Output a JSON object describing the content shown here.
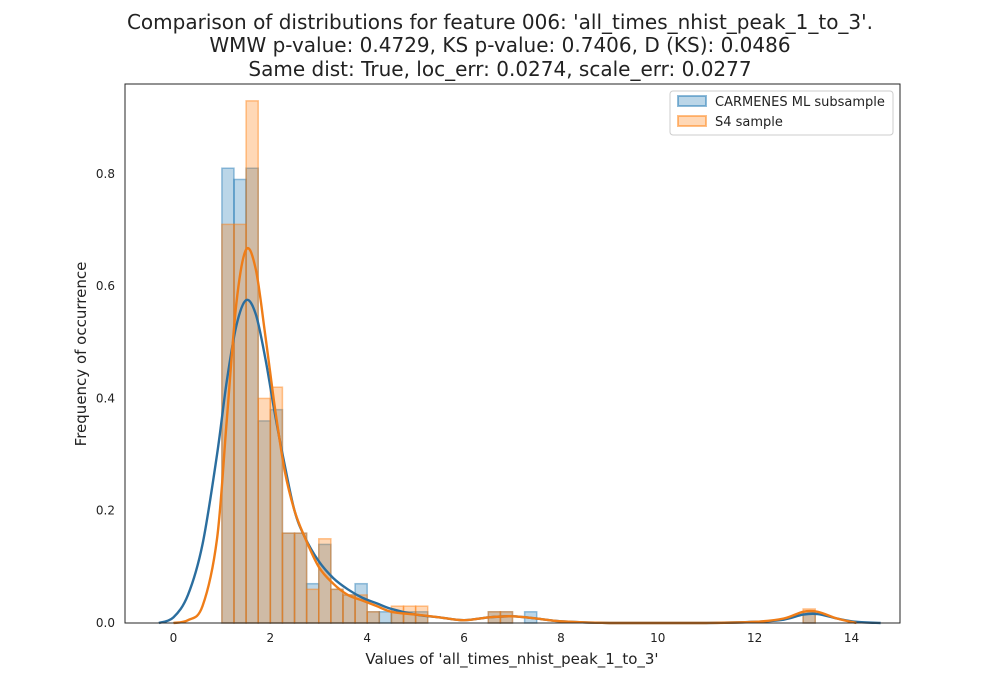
{
  "chart_data": {
    "type": "bar",
    "title_lines": [
      "Comparison of distributions for feature 006: 'all_times_nhist_peak_1_to_3'.",
      "WMW p-value: 0.4729, KS p-value: 0.7406, D (KS): 0.0486",
      "Same dist: True, loc_err: 0.0274, scale_err: 0.0277"
    ],
    "xlabel": "Values of 'all_times_nhist_peak_1_to_3'",
    "ylabel": "Frequency of occurrence",
    "xlim": [
      -1,
      15
    ],
    "ylim": [
      0,
      0.96
    ],
    "xticks": [
      0,
      2,
      4,
      6,
      8,
      10,
      12,
      14
    ],
    "yticks": [
      0.0,
      0.2,
      0.4,
      0.6,
      0.8
    ],
    "grid": false,
    "legend_position": "top-right",
    "series": [
      {
        "name": "CARMENES ML subsample",
        "color": "#1f77b4",
        "kde_color": "#2b6e9f",
        "bin_edges": [
          1.0,
          1.25,
          1.5,
          1.75,
          2.0,
          2.25,
          2.5,
          2.75,
          3.0,
          3.25,
          3.5,
          3.75,
          4.0,
          4.25,
          4.5,
          4.75,
          5.0,
          5.25,
          5.5,
          5.75,
          6.0,
          6.25,
          6.5,
          6.75,
          7.0,
          7.25,
          7.5
        ],
        "hist_values": [
          0.81,
          0.79,
          0.81,
          0.36,
          0.38,
          0.16,
          0.16,
          0.07,
          0.14,
          0.06,
          0.05,
          0.07,
          0.02,
          0.02,
          0.02,
          0.02,
          0.02,
          0.0,
          0.0,
          0.0,
          0.0,
          0.0,
          0.02,
          0.02,
          0.0,
          0.02
        ],
        "extra_bins": [
          {
            "x0": 13.0,
            "x1": 13.25,
            "value": 0.02
          }
        ],
        "kde": {
          "x": [
            -0.3,
            0.0,
            0.3,
            0.6,
            0.9,
            1.1,
            1.3,
            1.5,
            1.7,
            1.9,
            2.1,
            2.3,
            2.5,
            2.7,
            3.0,
            3.3,
            3.6,
            3.9,
            4.2,
            4.5,
            5.0,
            5.5,
            6.0,
            6.5,
            7.0,
            7.5,
            8.0,
            9.0,
            10.0,
            11.0,
            12.0,
            12.6,
            13.0,
            13.3,
            13.7,
            14.1,
            14.6
          ],
          "y": [
            0.0,
            0.01,
            0.05,
            0.14,
            0.3,
            0.43,
            0.53,
            0.575,
            0.55,
            0.47,
            0.37,
            0.28,
            0.2,
            0.155,
            0.11,
            0.08,
            0.06,
            0.045,
            0.035,
            0.025,
            0.015,
            0.01,
            0.005,
            0.01,
            0.012,
            0.008,
            0.003,
            0.0,
            0.0,
            0.0,
            0.002,
            0.006,
            0.015,
            0.016,
            0.008,
            0.002,
            0.0
          ]
        }
      },
      {
        "name": "S4 sample",
        "color": "#ff7f0e",
        "kde_color": "#ef7d18",
        "bin_edges": [
          1.0,
          1.25,
          1.5,
          1.75,
          2.0,
          2.25,
          2.5,
          2.75,
          3.0,
          3.25,
          3.5,
          3.75,
          4.0,
          4.25,
          4.5,
          4.75,
          5.0,
          5.25,
          5.5,
          5.75,
          6.0,
          6.25,
          6.5,
          6.75,
          7.0,
          7.25,
          7.5
        ],
        "hist_values": [
          0.71,
          0.71,
          0.93,
          0.4,
          0.42,
          0.16,
          0.16,
          0.06,
          0.15,
          0.06,
          0.05,
          0.05,
          0.02,
          0.0,
          0.03,
          0.03,
          0.03,
          0.0,
          0.0,
          0.0,
          0.0,
          0.0,
          0.02,
          0.02,
          0.0,
          0.0
        ],
        "extra_bins": [
          {
            "x0": 13.0,
            "x1": 13.25,
            "value": 0.025
          }
        ],
        "kde": {
          "x": [
            0.0,
            0.3,
            0.6,
            0.9,
            1.1,
            1.3,
            1.5,
            1.7,
            1.9,
            2.1,
            2.3,
            2.5,
            2.7,
            3.0,
            3.3,
            3.6,
            3.9,
            4.2,
            4.5,
            5.0,
            5.5,
            6.0,
            6.5,
            7.0,
            7.5,
            8.0,
            9.0,
            10.0,
            11.0,
            12.0,
            12.6,
            13.0,
            13.3,
            13.7,
            14.1
          ],
          "y": [
            0.0,
            0.005,
            0.03,
            0.15,
            0.36,
            0.57,
            0.665,
            0.63,
            0.51,
            0.38,
            0.27,
            0.2,
            0.155,
            0.1,
            0.07,
            0.05,
            0.04,
            0.03,
            0.02,
            0.015,
            0.01,
            0.005,
            0.01,
            0.012,
            0.008,
            0.003,
            0.0,
            0.0,
            0.0,
            0.002,
            0.008,
            0.02,
            0.02,
            0.008,
            0.0
          ]
        }
      }
    ]
  }
}
